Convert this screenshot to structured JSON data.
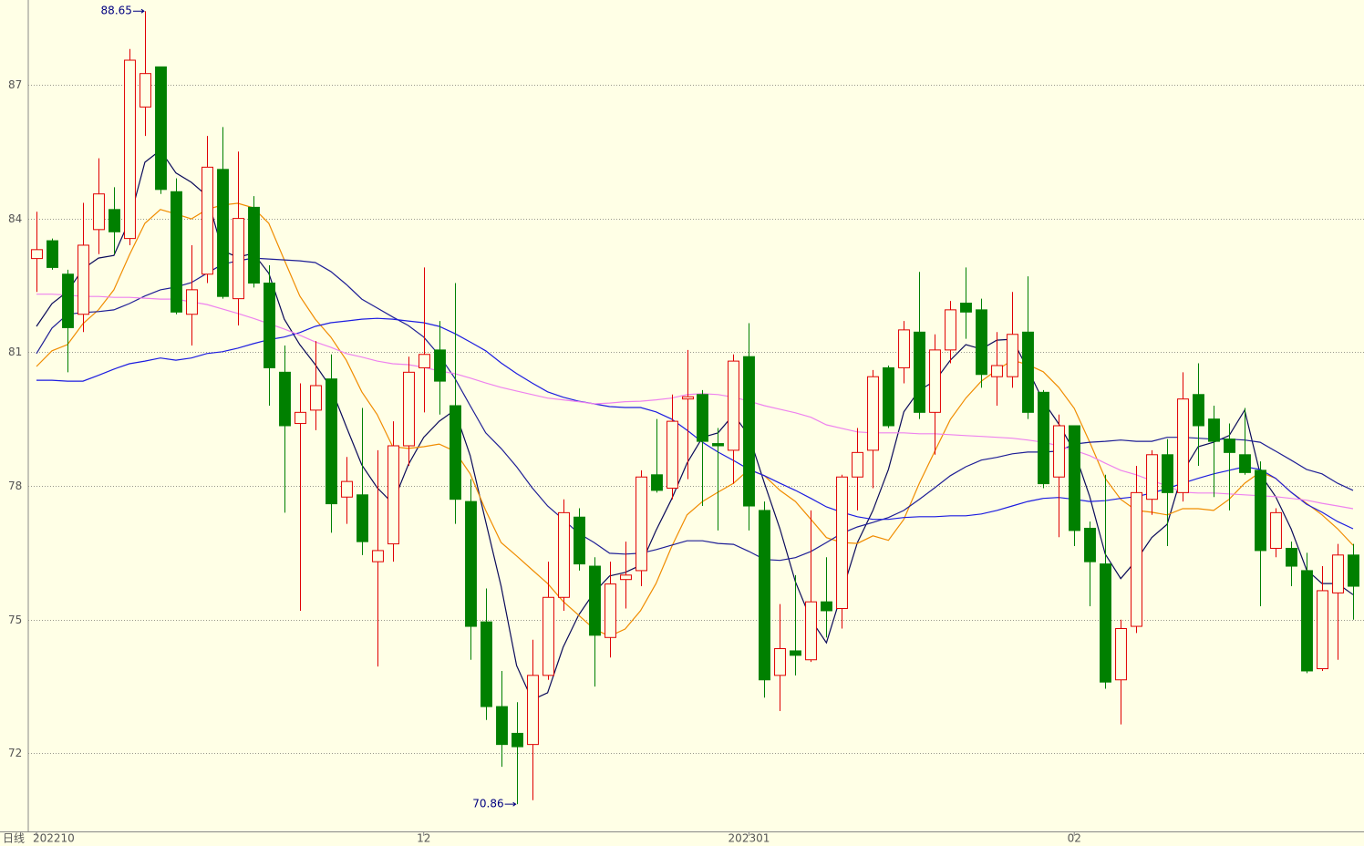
{
  "chart_data": {
    "type": "candlestick",
    "period_label": "日线",
    "categories": [
      "202210",
      null,
      null,
      null,
      null,
      null,
      null,
      null,
      null,
      null,
      null,
      null,
      null,
      null,
      null,
      null,
      null,
      null,
      null,
      null,
      null,
      null,
      null,
      null,
      null,
      "12",
      null,
      null,
      null,
      null,
      null,
      null,
      null,
      null,
      null,
      null,
      null,
      null,
      null,
      null,
      null,
      null,
      null,
      null,
      null,
      null,
      "202301",
      null,
      null,
      null,
      null,
      null,
      null,
      null,
      null,
      null,
      null,
      null,
      null,
      null,
      null,
      null,
      null,
      null,
      null,
      null,
      null,
      "02",
      null,
      null,
      null,
      null,
      null,
      null,
      null,
      null,
      null,
      null,
      null,
      null,
      null,
      null,
      null,
      null,
      null,
      null
    ],
    "open": [
      83.1,
      83.5,
      82.75,
      81.85,
      83.75,
      84.2,
      83.55,
      86.5,
      87.4,
      84.6,
      81.85,
      82.75,
      85.1,
      82.2,
      84.25,
      82.55,
      80.55,
      79.4,
      79.7,
      80.4,
      77.75,
      77.8,
      76.3,
      76.7,
      78.9,
      80.65,
      81.05,
      79.8,
      77.65,
      74.95,
      73.05,
      72.45,
      72.2,
      73.75,
      75.5,
      77.3,
      76.2,
      74.6,
      75.9,
      76.1,
      78.25,
      77.95,
      79.95,
      80.05,
      78.95,
      78.8,
      80.9,
      77.45,
      73.75,
      74.3,
      74.1,
      75.4,
      75.25,
      78.2,
      78.8,
      80.65,
      80.65,
      81.45,
      79.65,
      81.05,
      82.1,
      81.95,
      80.45,
      80.45,
      81.45,
      80.1,
      78.2,
      79.35,
      77.05,
      76.25,
      73.65,
      74.85,
      77.7,
      78.7,
      77.85,
      80.05,
      79.5,
      79.05,
      78.7,
      78.35,
      76.6,
      76.6,
      76.1,
      73.9,
      75.6,
      76.45
    ],
    "high": [
      84.15,
      83.55,
      82.85,
      84.35,
      85.35,
      84.7,
      87.8,
      88.65,
      87.4,
      84.9,
      83.4,
      85.85,
      86.05,
      85.5,
      84.5,
      82.95,
      81.15,
      80.3,
      81.25,
      80.95,
      78.65,
      79.75,
      78.8,
      79.45,
      80.9,
      82.9,
      81.7,
      82.55,
      78.15,
      75.7,
      73.85,
      73.15,
      74.55,
      76.3,
      77.7,
      77.5,
      76.4,
      76.3,
      76.75,
      78.35,
      79.5,
      80.05,
      81.05,
      80.15,
      79.3,
      80.95,
      81.65,
      77.65,
      75.35,
      76.0,
      77.45,
      76.4,
      78.25,
      79.3,
      80.6,
      80.7,
      81.7,
      82.8,
      81.4,
      82.15,
      82.9,
      82.2,
      81.45,
      82.35,
      82.7,
      80.15,
      79.6,
      79.35,
      77.2,
      78.25,
      75.0,
      78.45,
      78.8,
      79.05,
      80.55,
      80.75,
      79.8,
      79.4,
      79.75,
      78.55,
      77.5,
      76.75,
      76.5,
      76.2,
      76.7,
      76.7
    ],
    "low": [
      82.35,
      82.85,
      80.55,
      81.45,
      83.2,
      83.2,
      83.4,
      85.85,
      84.55,
      81.85,
      81.15,
      82.55,
      82.2,
      81.6,
      82.45,
      79.8,
      77.4,
      75.2,
      79.25,
      76.95,
      77.15,
      76.45,
      73.95,
      76.3,
      78.45,
      79.65,
      79.6,
      77.15,
      74.1,
      72.75,
      71.7,
      70.86,
      70.95,
      73.65,
      75.2,
      76.1,
      73.5,
      74.15,
      75.25,
      75.75,
      77.85,
      77.7,
      78.15,
      77.55,
      77.0,
      78.05,
      77.0,
      73.25,
      72.95,
      73.75,
      74.05,
      74.6,
      74.8,
      77.45,
      77.95,
      79.3,
      80.3,
      79.5,
      78.7,
      80.75,
      81.3,
      80.2,
      79.8,
      80.2,
      79.5,
      77.95,
      76.85,
      76.65,
      75.3,
      73.45,
      72.65,
      74.7,
      77.35,
      76.65,
      77.65,
      78.45,
      77.75,
      77.45,
      78.25,
      75.3,
      76.4,
      75.75,
      73.8,
      73.85,
      74.1,
      75.0
    ],
    "close": [
      83.3,
      82.9,
      81.55,
      83.4,
      84.55,
      83.7,
      87.55,
      87.25,
      84.65,
      81.9,
      82.4,
      85.15,
      82.25,
      84.0,
      82.55,
      80.65,
      79.35,
      79.65,
      80.25,
      77.6,
      78.1,
      76.75,
      76.55,
      78.9,
      80.55,
      80.95,
      80.35,
      77.7,
      74.85,
      73.05,
      72.2,
      72.15,
      73.75,
      75.5,
      77.4,
      76.25,
      74.65,
      75.8,
      76.0,
      78.2,
      77.9,
      79.45,
      80.0,
      79.0,
      78.9,
      80.8,
      77.55,
      73.65,
      74.35,
      74.2,
      75.4,
      75.2,
      78.2,
      78.75,
      80.45,
      79.35,
      81.5,
      79.65,
      81.05,
      81.95,
      81.9,
      80.5,
      80.7,
      81.4,
      79.65,
      78.05,
      79.35,
      77.0,
      76.3,
      73.6,
      74.8,
      77.85,
      78.7,
      77.85,
      79.95,
      79.35,
      79.0,
      78.75,
      78.3,
      76.55,
      77.4,
      76.2,
      73.85,
      75.65,
      76.45,
      75.75
    ],
    "up_color": "#e00000",
    "down_color": "#008000",
    "lines": [
      {
        "color": "#0a0a5a",
        "values": [
          81.58,
          82.09,
          82.36,
          82.87,
          83.11,
          83.17,
          83.95,
          85.26,
          85.53,
          85.02,
          84.81,
          84.51,
          83.28,
          83.13,
          83.22,
          82.77,
          81.74,
          81.17,
          80.72,
          80.21,
          79.33,
          78.47,
          77.96,
          77.61,
          78.47,
          79.09,
          79.45,
          79.7,
          78.68,
          77.2,
          75.75,
          73.97,
          73.2,
          73.36,
          74.38,
          75.1,
          75.61,
          75.98,
          76.06,
          76.22,
          77.0,
          77.7,
          78.51,
          79.09,
          79.19,
          79.6,
          79.13,
          78.06,
          77.04,
          75.85,
          75.0,
          74.48,
          75.61,
          76.73,
          77.45,
          78.37,
          79.66,
          80.15,
          80.35,
          80.82,
          81.17,
          81.07,
          81.27,
          81.29,
          80.62,
          79.9,
          79.39,
          78.78,
          77.76,
          76.47,
          75.92,
          76.33,
          76.84,
          77.14,
          78.31,
          78.88,
          78.98,
          79.13,
          79.7,
          78.27,
          77.76,
          77.04,
          76.12,
          75.81,
          75.81,
          75.56
        ]
      },
      {
        "color": "#f08c00",
        "values": [
          80.68,
          81.03,
          81.17,
          81.64,
          81.95,
          82.4,
          83.18,
          83.89,
          84.2,
          84.1,
          83.99,
          84.2,
          84.3,
          84.34,
          84.24,
          83.89,
          83.07,
          82.26,
          81.74,
          81.34,
          80.82,
          80.11,
          79.6,
          78.88,
          78.84,
          78.88,
          78.94,
          78.78,
          78.27,
          77.45,
          76.73,
          76.43,
          76.12,
          75.81,
          75.41,
          75.1,
          74.79,
          74.63,
          74.79,
          75.2,
          75.81,
          76.63,
          77.35,
          77.65,
          77.86,
          78.06,
          78.37,
          78.23,
          77.9,
          77.65,
          77.25,
          76.84,
          76.73,
          76.71,
          76.88,
          76.78,
          77.25,
          78.06,
          78.78,
          79.49,
          79.97,
          80.35,
          80.6,
          80.82,
          80.72,
          80.56,
          80.21,
          79.74,
          78.98,
          78.17,
          77.7,
          77.45,
          77.41,
          77.35,
          77.49,
          77.49,
          77.45,
          77.7,
          78.06,
          78.31,
          78.17,
          77.86,
          77.61,
          77.35,
          77.04,
          76.67
        ]
      },
      {
        "color": "#1e1e96",
        "values": [
          80.97,
          81.54,
          81.85,
          81.89,
          81.91,
          81.95,
          82.09,
          82.26,
          82.4,
          82.46,
          82.56,
          82.77,
          82.97,
          83.05,
          83.11,
          83.09,
          83.07,
          83.05,
          83.01,
          82.81,
          82.52,
          82.19,
          81.99,
          81.79,
          81.6,
          81.34,
          80.93,
          80.42,
          79.8,
          79.19,
          78.84,
          78.43,
          77.96,
          77.55,
          77.25,
          76.94,
          76.73,
          76.49,
          76.47,
          76.49,
          76.57,
          76.67,
          76.77,
          76.77,
          76.71,
          76.69,
          76.53,
          76.35,
          76.33,
          76.39,
          76.53,
          76.73,
          76.94,
          77.08,
          77.18,
          77.29,
          77.45,
          77.7,
          77.96,
          78.23,
          78.43,
          78.58,
          78.64,
          78.72,
          78.76,
          78.76,
          78.78,
          78.94,
          78.98,
          79.0,
          79.03,
          79.0,
          79.0,
          79.09,
          79.09,
          79.07,
          79.05,
          79.05,
          79.03,
          78.98,
          78.78,
          78.58,
          78.37,
          78.27,
          78.06,
          77.9
        ]
      },
      {
        "color": "#1c1ce0",
        "values": [
          80.37,
          80.37,
          80.35,
          80.35,
          80.48,
          80.62,
          80.74,
          80.8,
          80.87,
          80.82,
          80.87,
          80.97,
          81.01,
          81.09,
          81.19,
          81.28,
          81.34,
          81.44,
          81.58,
          81.66,
          81.7,
          81.74,
          81.76,
          81.74,
          81.7,
          81.66,
          81.58,
          81.42,
          81.23,
          81.03,
          80.76,
          80.52,
          80.31,
          80.11,
          79.99,
          79.9,
          79.84,
          79.78,
          79.76,
          79.76,
          79.66,
          79.5,
          79.25,
          78.98,
          78.76,
          78.57,
          78.37,
          78.23,
          78.06,
          77.9,
          77.72,
          77.53,
          77.41,
          77.31,
          77.25,
          77.25,
          77.29,
          77.31,
          77.31,
          77.33,
          77.33,
          77.37,
          77.45,
          77.55,
          77.65,
          77.72,
          77.74,
          77.7,
          77.65,
          77.67,
          77.72,
          77.76,
          77.84,
          77.94,
          78.06,
          78.17,
          78.27,
          78.35,
          78.43,
          78.37,
          78.17,
          77.86,
          77.59,
          77.41,
          77.2,
          77.04
        ]
      },
      {
        "color": "#ee82ee",
        "values": [
          82.3,
          82.3,
          82.28,
          82.25,
          82.25,
          82.23,
          82.23,
          82.21,
          82.19,
          82.19,
          82.13,
          82.07,
          81.97,
          81.87,
          81.76,
          81.64,
          81.52,
          81.38,
          81.23,
          81.11,
          80.97,
          80.89,
          80.8,
          80.74,
          80.72,
          80.66,
          80.58,
          80.52,
          80.42,
          80.31,
          80.21,
          80.13,
          80.05,
          79.97,
          79.93,
          79.89,
          79.84,
          79.86,
          79.89,
          79.9,
          79.93,
          79.97,
          80.05,
          80.07,
          80.05,
          79.99,
          79.9,
          79.8,
          79.72,
          79.64,
          79.54,
          79.37,
          79.29,
          79.21,
          79.19,
          79.19,
          79.19,
          79.17,
          79.17,
          79.15,
          79.13,
          79.11,
          79.09,
          79.07,
          79.03,
          78.98,
          78.9,
          78.8,
          78.68,
          78.51,
          78.35,
          78.25,
          78.12,
          78.0,
          77.86,
          77.84,
          77.84,
          77.82,
          77.8,
          77.78,
          77.76,
          77.72,
          77.68,
          77.61,
          77.55,
          77.49
        ]
      }
    ],
    "annotations": [
      {
        "text": "88.65",
        "value": 88.65,
        "at": "high"
      },
      {
        "text": "70.86",
        "value": 70.86,
        "at": "low"
      }
    ],
    "ylim": [
      70.25,
      88.9
    ],
    "yticks": [
      72,
      75,
      78,
      81,
      84,
      87
    ],
    "grid": true
  }
}
